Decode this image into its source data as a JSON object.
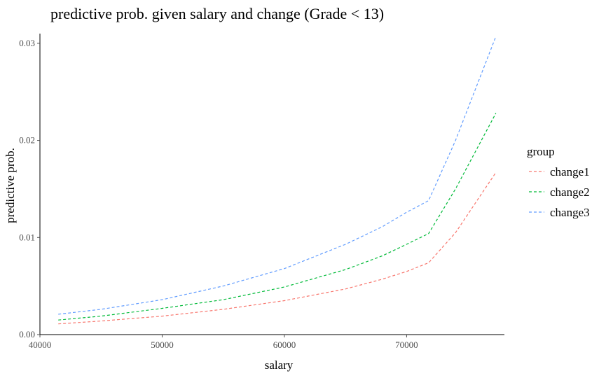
{
  "chart_data": {
    "type": "line",
    "title": "predictive prob. given salary and change (Grade < 13)",
    "xlabel": "salary",
    "ylabel": "predictive prob.",
    "xlim": [
      40000,
      78000
    ],
    "ylim": [
      0,
      0.031
    ],
    "x_ticks": [
      40000,
      50000,
      60000,
      70000
    ],
    "x_tick_labels": [
      "40000",
      "50000",
      "60000",
      "70000"
    ],
    "y_ticks": [
      0,
      0.01,
      0.02,
      0.03
    ],
    "y_tick_labels": [
      "0.00",
      "0.01",
      "0.02",
      "0.03"
    ],
    "grid": false,
    "legend": {
      "title": "group",
      "position": "right"
    },
    "x": [
      41500,
      45000,
      50000,
      55000,
      60000,
      65000,
      68000,
      70000,
      71800,
      74000,
      77300
    ],
    "series": [
      {
        "name": "change1",
        "color": "#F8766D",
        "values": [
          0.0011,
          0.0014,
          0.0019,
          0.0026,
          0.0035,
          0.0047,
          0.0057,
          0.0065,
          0.0074,
          0.0105,
          0.0167
        ]
      },
      {
        "name": "change2",
        "color": "#00BA38",
        "values": [
          0.0015,
          0.0019,
          0.0027,
          0.0036,
          0.0049,
          0.0067,
          0.0081,
          0.0093,
          0.0104,
          0.015,
          0.0228
        ]
      },
      {
        "name": "change3",
        "color": "#619CFF",
        "values": [
          0.0021,
          0.0026,
          0.0036,
          0.005,
          0.0068,
          0.0093,
          0.0111,
          0.0126,
          0.0138,
          0.02,
          0.0307
        ]
      }
    ]
  }
}
